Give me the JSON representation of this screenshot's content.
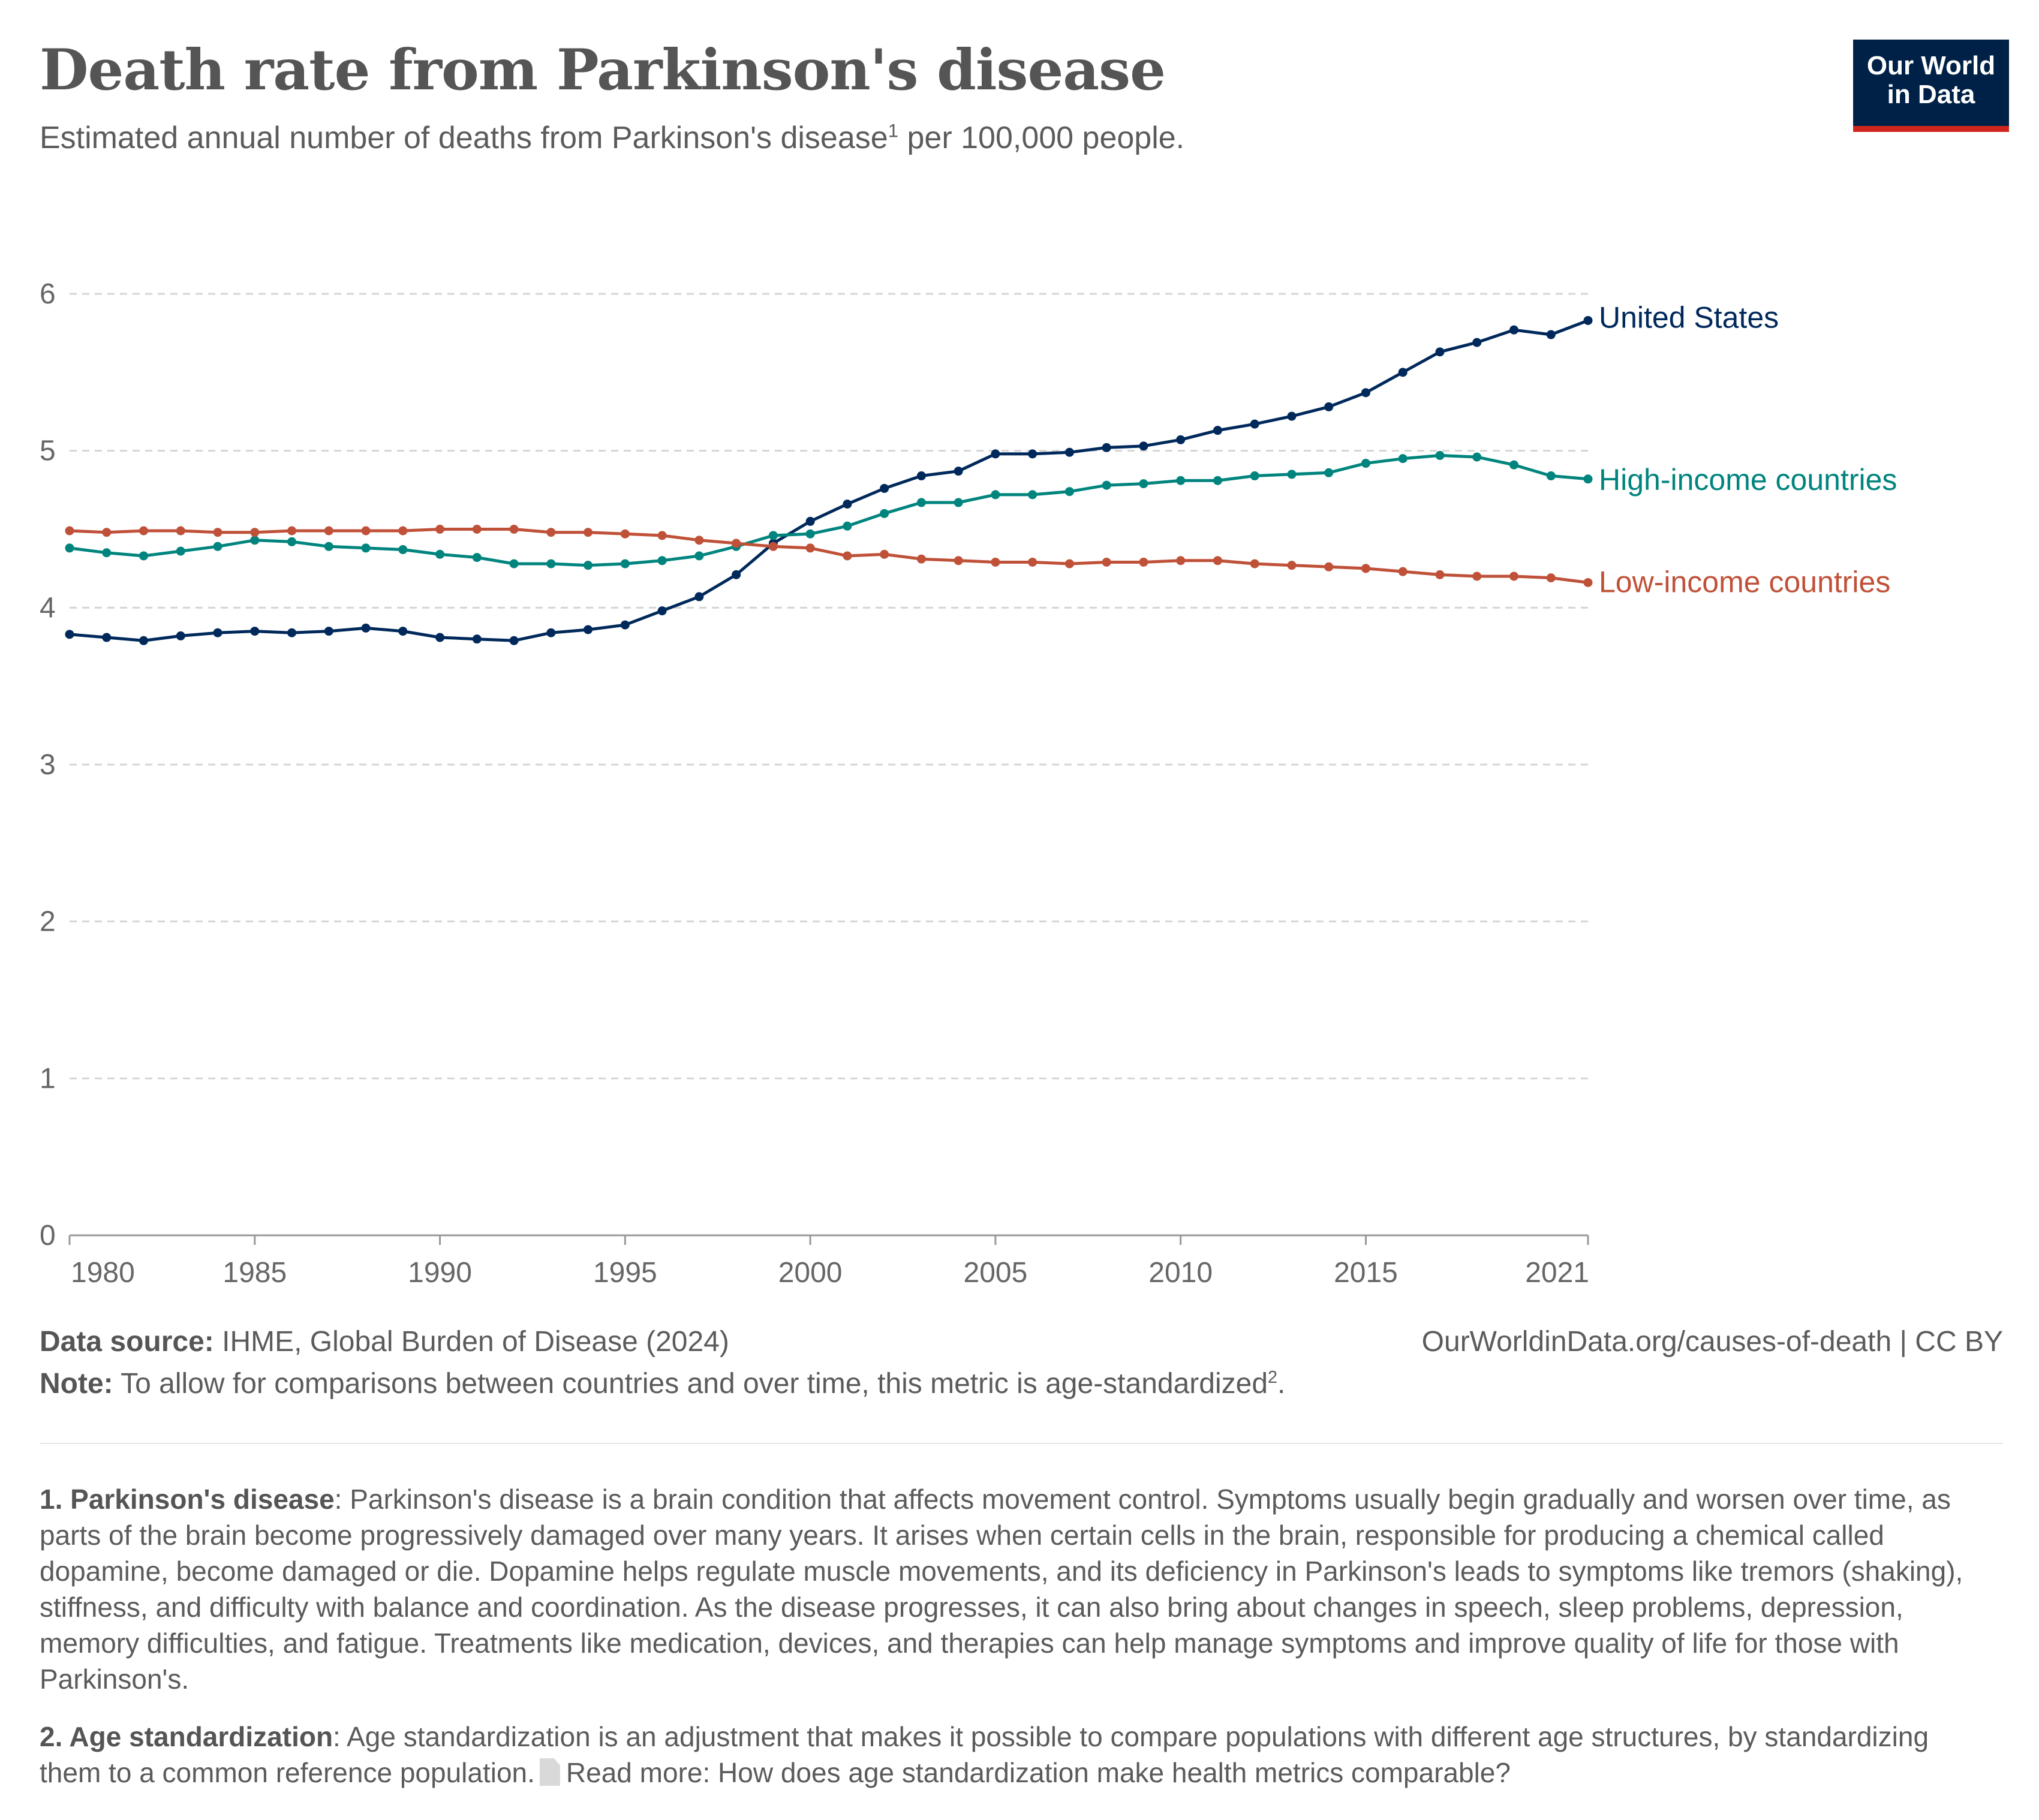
{
  "header": {
    "title": "Death rate from Parkinson's disease",
    "subtitle_pre": "Estimated annual number of deaths from Parkinson's disease",
    "subtitle_ref": "1",
    "subtitle_post": " per 100,000 people."
  },
  "logo": {
    "line1": "Our World",
    "line2": "in Data"
  },
  "footer": {
    "source_label": "Data source:",
    "source_text": " IHME, Global Burden of Disease (2024)",
    "url": "OurWorldinData.org/causes-of-death",
    "license": " | CC BY",
    "note_label": "Note:",
    "note_text": " To allow for comparisons between countries and over time, this metric is  age-standardized",
    "note_ref": "2",
    "note_end": "."
  },
  "footnotes": {
    "fn1_label": "1. Parkinson's disease",
    "fn1_text": ": Parkinson's disease is a brain condition that affects movement control. Symptoms usually begin gradually and worsen over time, as parts of the brain become progressively damaged over many years. It arises when certain cells in the brain, responsible for producing a chemical called dopamine, become damaged or die. Dopamine helps regulate muscle movements, and its deficiency in Parkinson's leads to symptoms like tremors (shaking), stiffness, and difficulty with balance and coordination. As the disease progresses, it can also bring about changes in speech, sleep problems, depression, memory difficulties, and fatigue. Treatments like medication, devices, and therapies can help manage symptoms and improve quality of life for those with Parkinson's.",
    "fn2_label": "2. Age standardization",
    "fn2_text": ": Age standardization is an adjustment that makes it possible to compare populations with different age structures, by standardizing them to a common reference population.",
    "fn2_link": "Read more: How does age standardization make health metrics comparable?"
  },
  "chart_data": {
    "type": "line",
    "title": "Death rate from Parkinson's disease",
    "xlabel": "",
    "ylabel": "",
    "xlim": [
      1980,
      2021
    ],
    "ylim": [
      0,
      6
    ],
    "y_ticks": [
      "0",
      "1",
      "2",
      "3",
      "4",
      "5",
      "6"
    ],
    "x_ticks": [
      "1980",
      "1985",
      "1990",
      "1995",
      "2000",
      "2005",
      "2010",
      "2015",
      "2021"
    ],
    "grid": "horizontal dashed",
    "legend": "inline labels at line ends (right)",
    "x": [
      1980,
      1981,
      1982,
      1983,
      1984,
      1985,
      1986,
      1987,
      1988,
      1989,
      1990,
      1991,
      1992,
      1993,
      1994,
      1995,
      1996,
      1997,
      1998,
      1999,
      2000,
      2001,
      2002,
      2003,
      2004,
      2005,
      2006,
      2007,
      2008,
      2009,
      2010,
      2011,
      2012,
      2013,
      2014,
      2015,
      2016,
      2017,
      2018,
      2019,
      2020,
      2021
    ],
    "series": [
      {
        "name": "United States",
        "color": "#00295b",
        "values": [
          3.83,
          3.81,
          3.79,
          3.82,
          3.84,
          3.85,
          3.84,
          3.85,
          3.87,
          3.85,
          3.81,
          3.8,
          3.79,
          3.84,
          3.86,
          3.89,
          3.98,
          4.07,
          4.21,
          4.41,
          4.55,
          4.66,
          4.76,
          4.84,
          4.87,
          4.98,
          4.98,
          4.99,
          5.02,
          5.03,
          5.07,
          5.13,
          5.17,
          5.22,
          5.28,
          5.37,
          5.5,
          5.63,
          5.69,
          5.77,
          5.74,
          5.83
        ]
      },
      {
        "name": "High-income countries",
        "color": "#00847e",
        "values": [
          4.38,
          4.35,
          4.33,
          4.36,
          4.39,
          4.43,
          4.42,
          4.39,
          4.38,
          4.37,
          4.34,
          4.32,
          4.28,
          4.28,
          4.27,
          4.28,
          4.3,
          4.33,
          4.39,
          4.46,
          4.47,
          4.52,
          4.6,
          4.67,
          4.67,
          4.72,
          4.72,
          4.74,
          4.78,
          4.79,
          4.81,
          4.81,
          4.84,
          4.85,
          4.86,
          4.92,
          4.95,
          4.97,
          4.96,
          4.91,
          4.84,
          4.82
        ]
      },
      {
        "name": "Low-income countries",
        "color": "#c05139",
        "values": [
          4.49,
          4.48,
          4.49,
          4.49,
          4.48,
          4.48,
          4.49,
          4.49,
          4.49,
          4.49,
          4.5,
          4.5,
          4.5,
          4.48,
          4.48,
          4.47,
          4.46,
          4.43,
          4.41,
          4.39,
          4.38,
          4.33,
          4.34,
          4.31,
          4.3,
          4.29,
          4.29,
          4.28,
          4.29,
          4.29,
          4.3,
          4.3,
          4.28,
          4.27,
          4.26,
          4.25,
          4.23,
          4.21,
          4.2,
          4.2,
          4.19,
          4.16
        ]
      }
    ]
  }
}
